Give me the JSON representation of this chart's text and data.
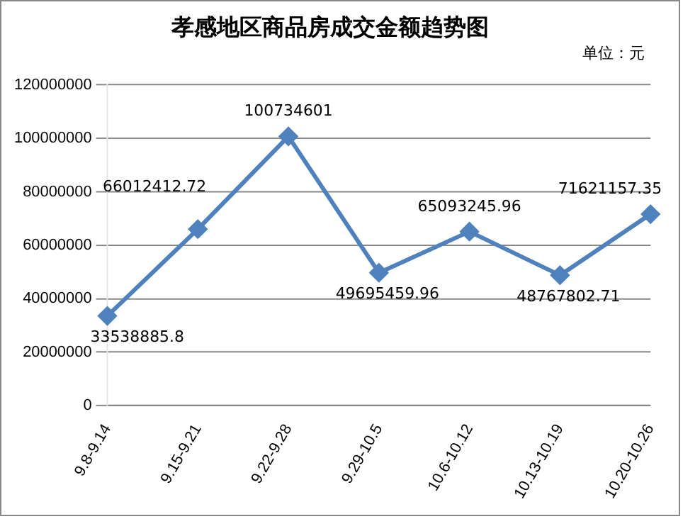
{
  "chart_data": {
    "type": "line",
    "title": "孝感地区商品房成交金额趋势图",
    "annotations": [
      "单位：元"
    ],
    "categories": [
      "9.8-9.14",
      "9.15-9.21",
      "9.22-9.28",
      "9.29-10.5",
      "10.6-10.12",
      "10.13-10.19",
      "10.20-10.26"
    ],
    "series": [
      {
        "color": "#4f81bd",
        "values": [
          33538885.8,
          66012412.72,
          100734601,
          49695459.96,
          65093245.96,
          48767802.71,
          71621157.35
        ]
      }
    ],
    "ylim": [
      0,
      120000000
    ],
    "yticks": [
      0,
      20000000,
      40000000,
      60000000,
      80000000,
      100000000,
      120000000
    ],
    "grid": "y",
    "marker": "diamond",
    "line_style": "solid",
    "data_labels": true
  }
}
